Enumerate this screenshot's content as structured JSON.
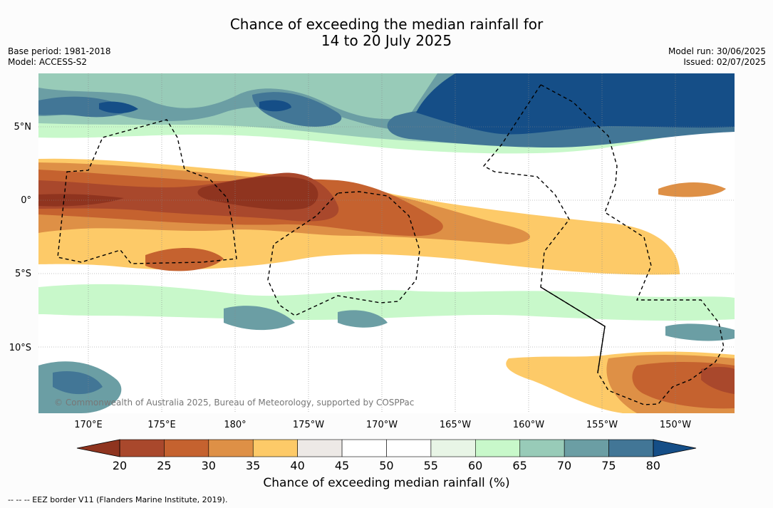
{
  "title": {
    "line1": "Chance of exceeding the median rainfall for",
    "line2": "14 to 20 July 2025"
  },
  "meta": {
    "base_period": "Base period: 1981-2018",
    "model": "Model: ACCESS-S2",
    "model_run": "Model run: 30/06/2025",
    "issued": "Issued: 02/07/2025"
  },
  "map": {
    "lat_labels": [
      "5°N",
      "0°",
      "5°S",
      "10°S"
    ],
    "lon_labels": [
      "170°E",
      "175°E",
      "180°",
      "175°W",
      "170°W",
      "165°W",
      "160°W",
      "155°W",
      "150°W"
    ],
    "copyright": "© Commonwealth of Australia 2025, Bureau of Meteorology, supported by COSPPac"
  },
  "colorbar": {
    "ticks": [
      "20",
      "25",
      "30",
      "35",
      "40",
      "45",
      "50",
      "55",
      "60",
      "65",
      "70",
      "75",
      "80"
    ],
    "colors": [
      "#a9482c",
      "#c5622f",
      "#de9046",
      "#fdca68",
      "#ede9e6",
      "#ffffff",
      "#ffffff",
      "#e8f5e6",
      "#c8f8ca",
      "#98cbb8",
      "#6b9ea4",
      "#427696"
    ],
    "under_color": "#8f341f",
    "over_color": "#154e87",
    "label": "Chance of exceeding median rainfall (%)"
  },
  "footnote": "--  --  -- EEZ border V11 (Flanders Marine Institute, 2019)."
}
